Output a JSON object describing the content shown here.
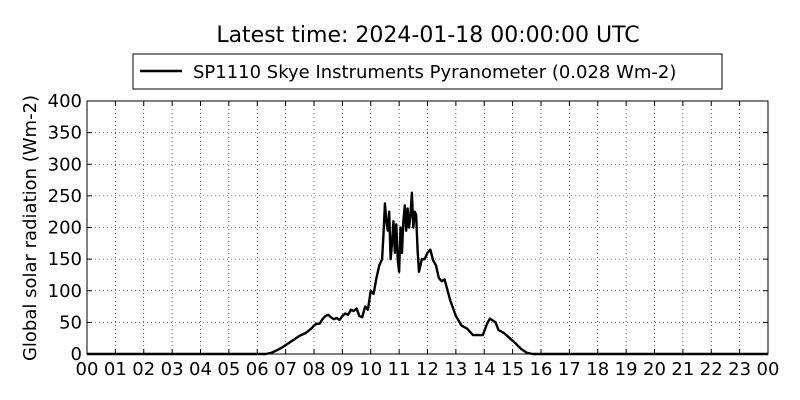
{
  "chart_data": {
    "type": "line",
    "title": "Latest time: 2024-01-18 00:00:00 UTC",
    "ylabel": "Global solar radiation (Wm-2)",
    "xlabel": "",
    "ylim": [
      0,
      400
    ],
    "xlim": [
      0,
      24
    ],
    "grid": true,
    "legend_position": "top-center",
    "y_ticks": [
      "0",
      "50",
      "100",
      "150",
      "200",
      "250",
      "300",
      "350",
      "400"
    ],
    "x_ticks": [
      "00",
      "01",
      "02",
      "03",
      "04",
      "05",
      "06",
      "07",
      "08",
      "09",
      "10",
      "11",
      "12",
      "13",
      "14",
      "15",
      "16",
      "17",
      "18",
      "19",
      "20",
      "21",
      "22",
      "23",
      "00"
    ],
    "series": [
      {
        "name": "SP1110 Skye Instruments Pyranometer (0.028 Wm-2)",
        "color": "#000000",
        "x": [
          0,
          6.3,
          6.5,
          6.7,
          6.9,
          7.1,
          7.3,
          7.5,
          7.7,
          7.9,
          8.0,
          8.1,
          8.2,
          8.3,
          8.4,
          8.5,
          8.6,
          8.7,
          8.8,
          8.9,
          9.0,
          9.1,
          9.2,
          9.3,
          9.4,
          9.5,
          9.6,
          9.7,
          9.8,
          9.9,
          10.0,
          10.1,
          10.2,
          10.3,
          10.4,
          10.45,
          10.5,
          10.55,
          10.6,
          10.65,
          10.7,
          10.75,
          10.8,
          10.85,
          10.9,
          10.95,
          11.0,
          11.05,
          11.1,
          11.15,
          11.2,
          11.25,
          11.3,
          11.35,
          11.4,
          11.45,
          11.5,
          11.55,
          11.6,
          11.65,
          11.7,
          11.8,
          11.9,
          12.0,
          12.1,
          12.2,
          12.3,
          12.4,
          12.5,
          12.6,
          12.8,
          13.0,
          13.2,
          13.4,
          13.6,
          13.8,
          13.95,
          14.1,
          14.2,
          14.3,
          14.4,
          14.5,
          14.7,
          14.9,
          15.1,
          15.3,
          15.5,
          15.7,
          15.9,
          16.0,
          24.0
        ],
        "y": [
          0,
          0,
          2,
          6,
          11,
          17,
          23,
          29,
          33,
          40,
          45,
          48,
          48,
          55,
          60,
          62,
          58,
          55,
          57,
          54,
          60,
          64,
          62,
          70,
          68,
          72,
          60,
          58,
          75,
          70,
          100,
          95,
          120,
          140,
          150,
          190,
          238,
          210,
          195,
          225,
          150,
          175,
          210,
          160,
          205,
          150,
          130,
          200,
          160,
          210,
          235,
          195,
          230,
          200,
          220,
          255,
          200,
          225,
          220,
          165,
          130,
          150,
          150,
          160,
          165,
          148,
          140,
          120,
          115,
          118,
          85,
          60,
          45,
          40,
          30,
          30,
          30,
          48,
          56,
          53,
          50,
          38,
          33,
          25,
          17,
          8,
          2,
          0,
          0,
          0,
          0
        ]
      }
    ]
  }
}
